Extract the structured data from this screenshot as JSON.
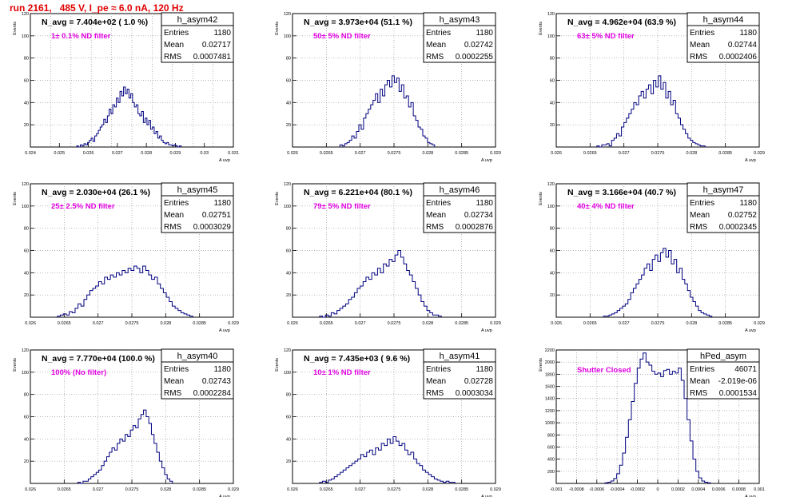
{
  "title": "run 2161,   485 V, I_pe ≈ 6.0 nA, 120 Hz",
  "colors": {
    "hist": "#000080",
    "title": "#e00000",
    "note": "#e000e0"
  },
  "common": {
    "ylabel": "Events",
    "xlabel": "A_uvp",
    "stats_labels": [
      "Entries",
      "Mean",
      "RMS"
    ]
  },
  "chart_data": [
    {
      "type": "bar",
      "name": "h_asym42",
      "navg": "N_avg = 7.404e+02 ( 1.0 %)",
      "note": "1± 0.1% ND filter",
      "stats": {
        "entries": "1180",
        "mean": "0.02717",
        "rms": "0.0007481"
      },
      "xlim": [
        0.024,
        0.031
      ],
      "ylim": [
        0,
        120
      ],
      "ncells": 10,
      "xticks": [
        "0.024",
        "0.025",
        "0.026",
        "0.027",
        "0.028",
        "0.029",
        "0.03",
        "0.031"
      ],
      "yticks": [
        "20",
        "40",
        "60",
        "80",
        "100",
        "120"
      ],
      "x_start": 0.0256,
      "x_end": 0.0292,
      "values": [
        1,
        0,
        2,
        1,
        3,
        2,
        4,
        6,
        8,
        5,
        10,
        12,
        15,
        18,
        20,
        25,
        22,
        28,
        34,
        30,
        38,
        36,
        44,
        40,
        50,
        46,
        54,
        48,
        52,
        44,
        48,
        40,
        36,
        38,
        30,
        28,
        32,
        22,
        26,
        20,
        24,
        16,
        18,
        12,
        14,
        8,
        10,
        6,
        4,
        3,
        4,
        2,
        2,
        1,
        2,
        1,
        0,
        1
      ]
    },
    {
      "type": "bar",
      "name": "h_asym43",
      "navg": "N_avg = 3.973e+04 (51.1 %)",
      "note": "50± 5% ND filter",
      "stats": {
        "entries": "1180",
        "mean": "0.02742",
        "rms": "0.0002255"
      },
      "xlim": [
        0.026,
        0.029
      ],
      "ylim": [
        0,
        120
      ],
      "ncells": 6,
      "xticks": [
        "0.026",
        "0.0265",
        "0.027",
        "0.0275",
        "0.028",
        "0.0285",
        "0.029"
      ],
      "yticks": [
        "20",
        "40",
        "60",
        "80",
        "100",
        "120"
      ],
      "x_start": 0.0267,
      "x_end": 0.0281,
      "values": [
        2,
        1,
        3,
        4,
        6,
        10,
        8,
        14,
        20,
        16,
        26,
        30,
        34,
        38,
        42,
        48,
        40,
        52,
        46,
        56,
        60,
        54,
        64,
        58,
        62,
        50,
        56,
        44,
        46,
        36,
        40,
        28,
        24,
        18,
        16,
        10,
        8,
        4,
        3,
        2
      ]
    },
    {
      "type": "bar",
      "name": "h_asym44",
      "navg": "N_avg = 4.962e+04 (63.9 %)",
      "note": "63± 5% ND filter",
      "stats": {
        "entries": "1180",
        "mean": "0.02744",
        "rms": "0.0002406"
      },
      "xlim": [
        0.026,
        0.029
      ],
      "ylim": [
        0,
        120
      ],
      "ncells": 6,
      "xticks": [
        "0.026",
        "0.0265",
        "0.027",
        "0.0275",
        "0.028",
        "0.0285",
        "0.029"
      ],
      "yticks": [
        "20",
        "40",
        "60",
        "80",
        "100",
        "120"
      ],
      "x_start": 0.0266,
      "x_end": 0.0282,
      "values": [
        1,
        0,
        2,
        2,
        3,
        1,
        6,
        8,
        12,
        10,
        18,
        22,
        26,
        30,
        34,
        40,
        38,
        46,
        50,
        44,
        52,
        56,
        48,
        60,
        54,
        64,
        52,
        58,
        44,
        50,
        38,
        42,
        30,
        26,
        20,
        16,
        12,
        8,
        6,
        4,
        3,
        2,
        1,
        1
      ]
    },
    {
      "type": "bar",
      "name": "h_asym45",
      "navg": "N_avg = 2.030e+04 (26.1 %)",
      "note": "25± 2.5% ND filter",
      "stats": {
        "entries": "1180",
        "mean": "0.02751",
        "rms": "0.0003029"
      },
      "xlim": [
        0.026,
        0.029
      ],
      "ylim": [
        0,
        120
      ],
      "ncells": 6,
      "xticks": [
        "0.026",
        "0.0265",
        "0.027",
        "0.0275",
        "0.028",
        "0.0285",
        "0.029"
      ],
      "yticks": [
        "20",
        "40",
        "60",
        "80",
        "100",
        "120"
      ],
      "x_start": 0.0264,
      "x_end": 0.0284,
      "values": [
        1,
        2,
        3,
        2,
        5,
        4,
        8,
        12,
        10,
        16,
        20,
        24,
        26,
        28,
        32,
        30,
        36,
        34,
        38,
        36,
        40,
        38,
        42,
        40,
        44,
        42,
        46,
        44,
        40,
        46,
        42,
        38,
        34,
        36,
        30,
        26,
        22,
        18,
        14,
        10,
        8,
        6,
        4,
        3,
        2,
        1
      ]
    },
    {
      "type": "bar",
      "name": "h_asym46",
      "navg": "N_avg = 6.221e+04 (80.1 %)",
      "note": "79± 5% ND filter",
      "stats": {
        "entries": "1180",
        "mean": "0.02734",
        "rms": "0.0002876"
      },
      "xlim": [
        0.026,
        0.029
      ],
      "ylim": [
        0,
        120
      ],
      "ncells": 6,
      "xticks": [
        "0.026",
        "0.0265",
        "0.027",
        "0.0275",
        "0.028",
        "0.0285",
        "0.029"
      ],
      "yticks": [
        "20",
        "40",
        "60",
        "80",
        "100",
        "120"
      ],
      "x_start": 0.0264,
      "x_end": 0.0282,
      "values": [
        1,
        0,
        2,
        1,
        4,
        3,
        6,
        8,
        10,
        12,
        16,
        18,
        22,
        26,
        28,
        32,
        36,
        34,
        40,
        38,
        44,
        40,
        48,
        46,
        52,
        50,
        56,
        60,
        54,
        48,
        42,
        38,
        32,
        26,
        20,
        14,
        10,
        6,
        4,
        2,
        2,
        1
      ]
    },
    {
      "type": "bar",
      "name": "h_asym47",
      "navg": "N_avg = 3.166e+04 (40.7 %)",
      "note": "40± 4% ND filter",
      "stats": {
        "entries": "1180",
        "mean": "0.02752",
        "rms": "0.0002345"
      },
      "xlim": [
        0.026,
        0.029
      ],
      "ylim": [
        0,
        120
      ],
      "ncells": 6,
      "xticks": [
        "0.026",
        "0.0265",
        "0.027",
        "0.0275",
        "0.028",
        "0.0285",
        "0.029"
      ],
      "yticks": [
        "20",
        "40",
        "60",
        "80",
        "100",
        "120"
      ],
      "x_start": 0.0267,
      "x_end": 0.0283,
      "values": [
        1,
        1,
        2,
        3,
        4,
        6,
        8,
        10,
        12,
        16,
        22,
        26,
        30,
        34,
        38,
        44,
        48,
        42,
        52,
        56,
        50,
        58,
        62,
        54,
        60,
        48,
        52,
        40,
        44,
        34,
        30,
        24,
        18,
        14,
        10,
        6,
        4,
        3,
        2,
        1
      ]
    },
    {
      "type": "bar",
      "name": "h_asym40",
      "navg": "N_avg = 7.770e+04 (100.0 %)",
      "note": "100% (No filter)",
      "stats": {
        "entries": "1180",
        "mean": "0.02743",
        "rms": "0.0002284"
      },
      "xlim": [
        0.026,
        0.029
      ],
      "ylim": [
        0,
        120
      ],
      "ncells": 6,
      "xticks": [
        "0.026",
        "0.0265",
        "0.027",
        "0.0275",
        "0.028",
        "0.0285",
        "0.029"
      ],
      "yticks": [
        "20",
        "40",
        "60",
        "80",
        "100",
        "120"
      ],
      "x_start": 0.0267,
      "x_end": 0.0281,
      "values": [
        1,
        0,
        2,
        2,
        4,
        6,
        8,
        10,
        12,
        16,
        20,
        24,
        28,
        32,
        30,
        36,
        40,
        38,
        44,
        42,
        48,
        52,
        50,
        58,
        62,
        66,
        60,
        54,
        44,
        36,
        28,
        20,
        14,
        8,
        4,
        2
      ]
    },
    {
      "type": "bar",
      "name": "h_asym41",
      "navg": "N_avg = 7.435e+03 ( 9.6 %)",
      "note": "10± 1% ND filter",
      "stats": {
        "entries": "1180",
        "mean": "0.02728",
        "rms": "0.0003034"
      },
      "xlim": [
        0.026,
        0.029
      ],
      "ylim": [
        0,
        120
      ],
      "ncells": 6,
      "xticks": [
        "0.026",
        "0.0265",
        "0.027",
        "0.0275",
        "0.028",
        "0.0285",
        "0.029"
      ],
      "yticks": [
        "20",
        "40",
        "60",
        "80",
        "100",
        "120"
      ],
      "x_start": 0.0264,
      "x_end": 0.0284,
      "values": [
        1,
        2,
        1,
        3,
        4,
        6,
        8,
        10,
        12,
        14,
        16,
        18,
        20,
        22,
        26,
        24,
        28,
        30,
        26,
        32,
        30,
        36,
        34,
        40,
        36,
        42,
        38,
        34,
        36,
        30,
        26,
        28,
        22,
        18,
        16,
        12,
        10,
        8,
        6,
        4,
        3,
        2,
        1,
        2,
        1,
        1
      ]
    },
    {
      "type": "bar",
      "name": "hPed_asym",
      "navg": "",
      "note": "Shutter Closed",
      "stats": {
        "entries": "46071",
        "mean": "-2.019e-06",
        "rms": "0.0001534"
      },
      "xlim": [
        -0.001,
        0.001
      ],
      "ylim": [
        0,
        2200
      ],
      "ncells": 10,
      "xticks": [
        "-0.001",
        "-0.0008",
        "-0.0006",
        "-0.0004",
        "-0.0002",
        "0",
        "0.0002",
        "0.0004",
        "0.0006",
        "0.0008",
        "0.001"
      ],
      "yticks": [
        "200",
        "400",
        "600",
        "800",
        "1000",
        "1200",
        "1400",
        "1600",
        "1800",
        "2000",
        "2200"
      ],
      "x_start": -0.00052,
      "x_end": 0.00052,
      "values": [
        10,
        20,
        40,
        80,
        160,
        300,
        500,
        760,
        1050,
        1350,
        1650,
        1900,
        2050,
        2150,
        2000,
        1950,
        1850,
        1800,
        1820,
        1760,
        1860,
        1880,
        1800,
        1850,
        1820,
        1900,
        1700,
        1400,
        1050,
        700,
        400,
        200,
        90,
        40,
        20,
        10
      ]
    }
  ]
}
